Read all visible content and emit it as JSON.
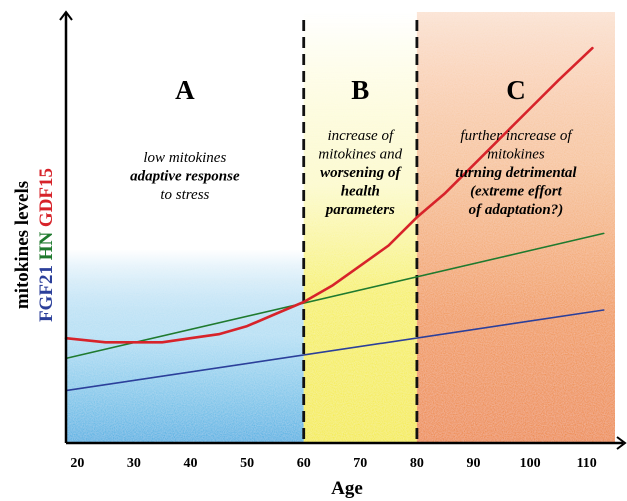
{
  "chart_data": {
    "type": "line",
    "xlabel": "Age",
    "ylabel_parts": [
      {
        "text": "FGF21",
        "color": "#2b3f9a"
      },
      {
        "text": "HN",
        "color": "#1f7a2e"
      },
      {
        "text": "GDF15",
        "color": "#d7232a"
      },
      {
        "text": "mitokines levels",
        "color": "#000000"
      }
    ],
    "xlim": [
      18,
      115
    ],
    "ylim": [
      0,
      100
    ],
    "x_ticks": [
      20,
      30,
      40,
      50,
      60,
      70,
      80,
      90,
      100,
      110
    ],
    "dividers": [
      60,
      80
    ],
    "regions": [
      {
        "letter": "A",
        "x_start": 18,
        "x_end": 60,
        "color": "#29a8e0",
        "lines": [
          {
            "text": "low mitokines",
            "style": "italic"
          },
          {
            "text": "adaptive response",
            "style": "bold-italic"
          },
          {
            "text": "to stress",
            "style": "italic"
          }
        ]
      },
      {
        "letter": "B",
        "x_start": 60,
        "x_end": 80,
        "color": "#f5ee3a",
        "lines": [
          {
            "text": "increase of",
            "style": "italic"
          },
          {
            "text": "mitokines and",
            "style": "italic"
          },
          {
            "text": "worsening of",
            "style": "bold-italic"
          },
          {
            "text": "health",
            "style": "bold-italic"
          },
          {
            "text": "parameters",
            "style": "bold-italic"
          }
        ]
      },
      {
        "letter": "C",
        "x_start": 80,
        "x_end": 115,
        "color": "#f08a2a",
        "lines": [
          {
            "text": "further increase of",
            "style": "italic"
          },
          {
            "text": "mitokines",
            "style": "italic"
          },
          {
            "text": "turning detrimental",
            "style": "bold-italic"
          },
          {
            "text": "(extreme effort",
            "style": "bold-italic"
          },
          {
            "text": "of adaptation?)",
            "style": "bold-italic"
          }
        ]
      }
    ],
    "series": [
      {
        "color": "#2b3f9a",
        "x": [
          18,
          113
        ],
        "y": [
          13,
          33
        ]
      },
      {
        "color": "#1f7a2e",
        "x": [
          18,
          113
        ],
        "y": [
          21,
          52
        ]
      },
      {
        "color": "#d7232a",
        "x": [
          18,
          25,
          30,
          35,
          40,
          45,
          50,
          55,
          60,
          65,
          70,
          75,
          80,
          85,
          90,
          95,
          100,
          105,
          111
        ],
        "y": [
          26,
          25,
          25,
          25,
          26,
          27,
          29,
          32,
          35,
          39,
          44,
          49,
          56,
          62,
          69,
          76,
          83,
          90,
          98
        ]
      }
    ]
  }
}
